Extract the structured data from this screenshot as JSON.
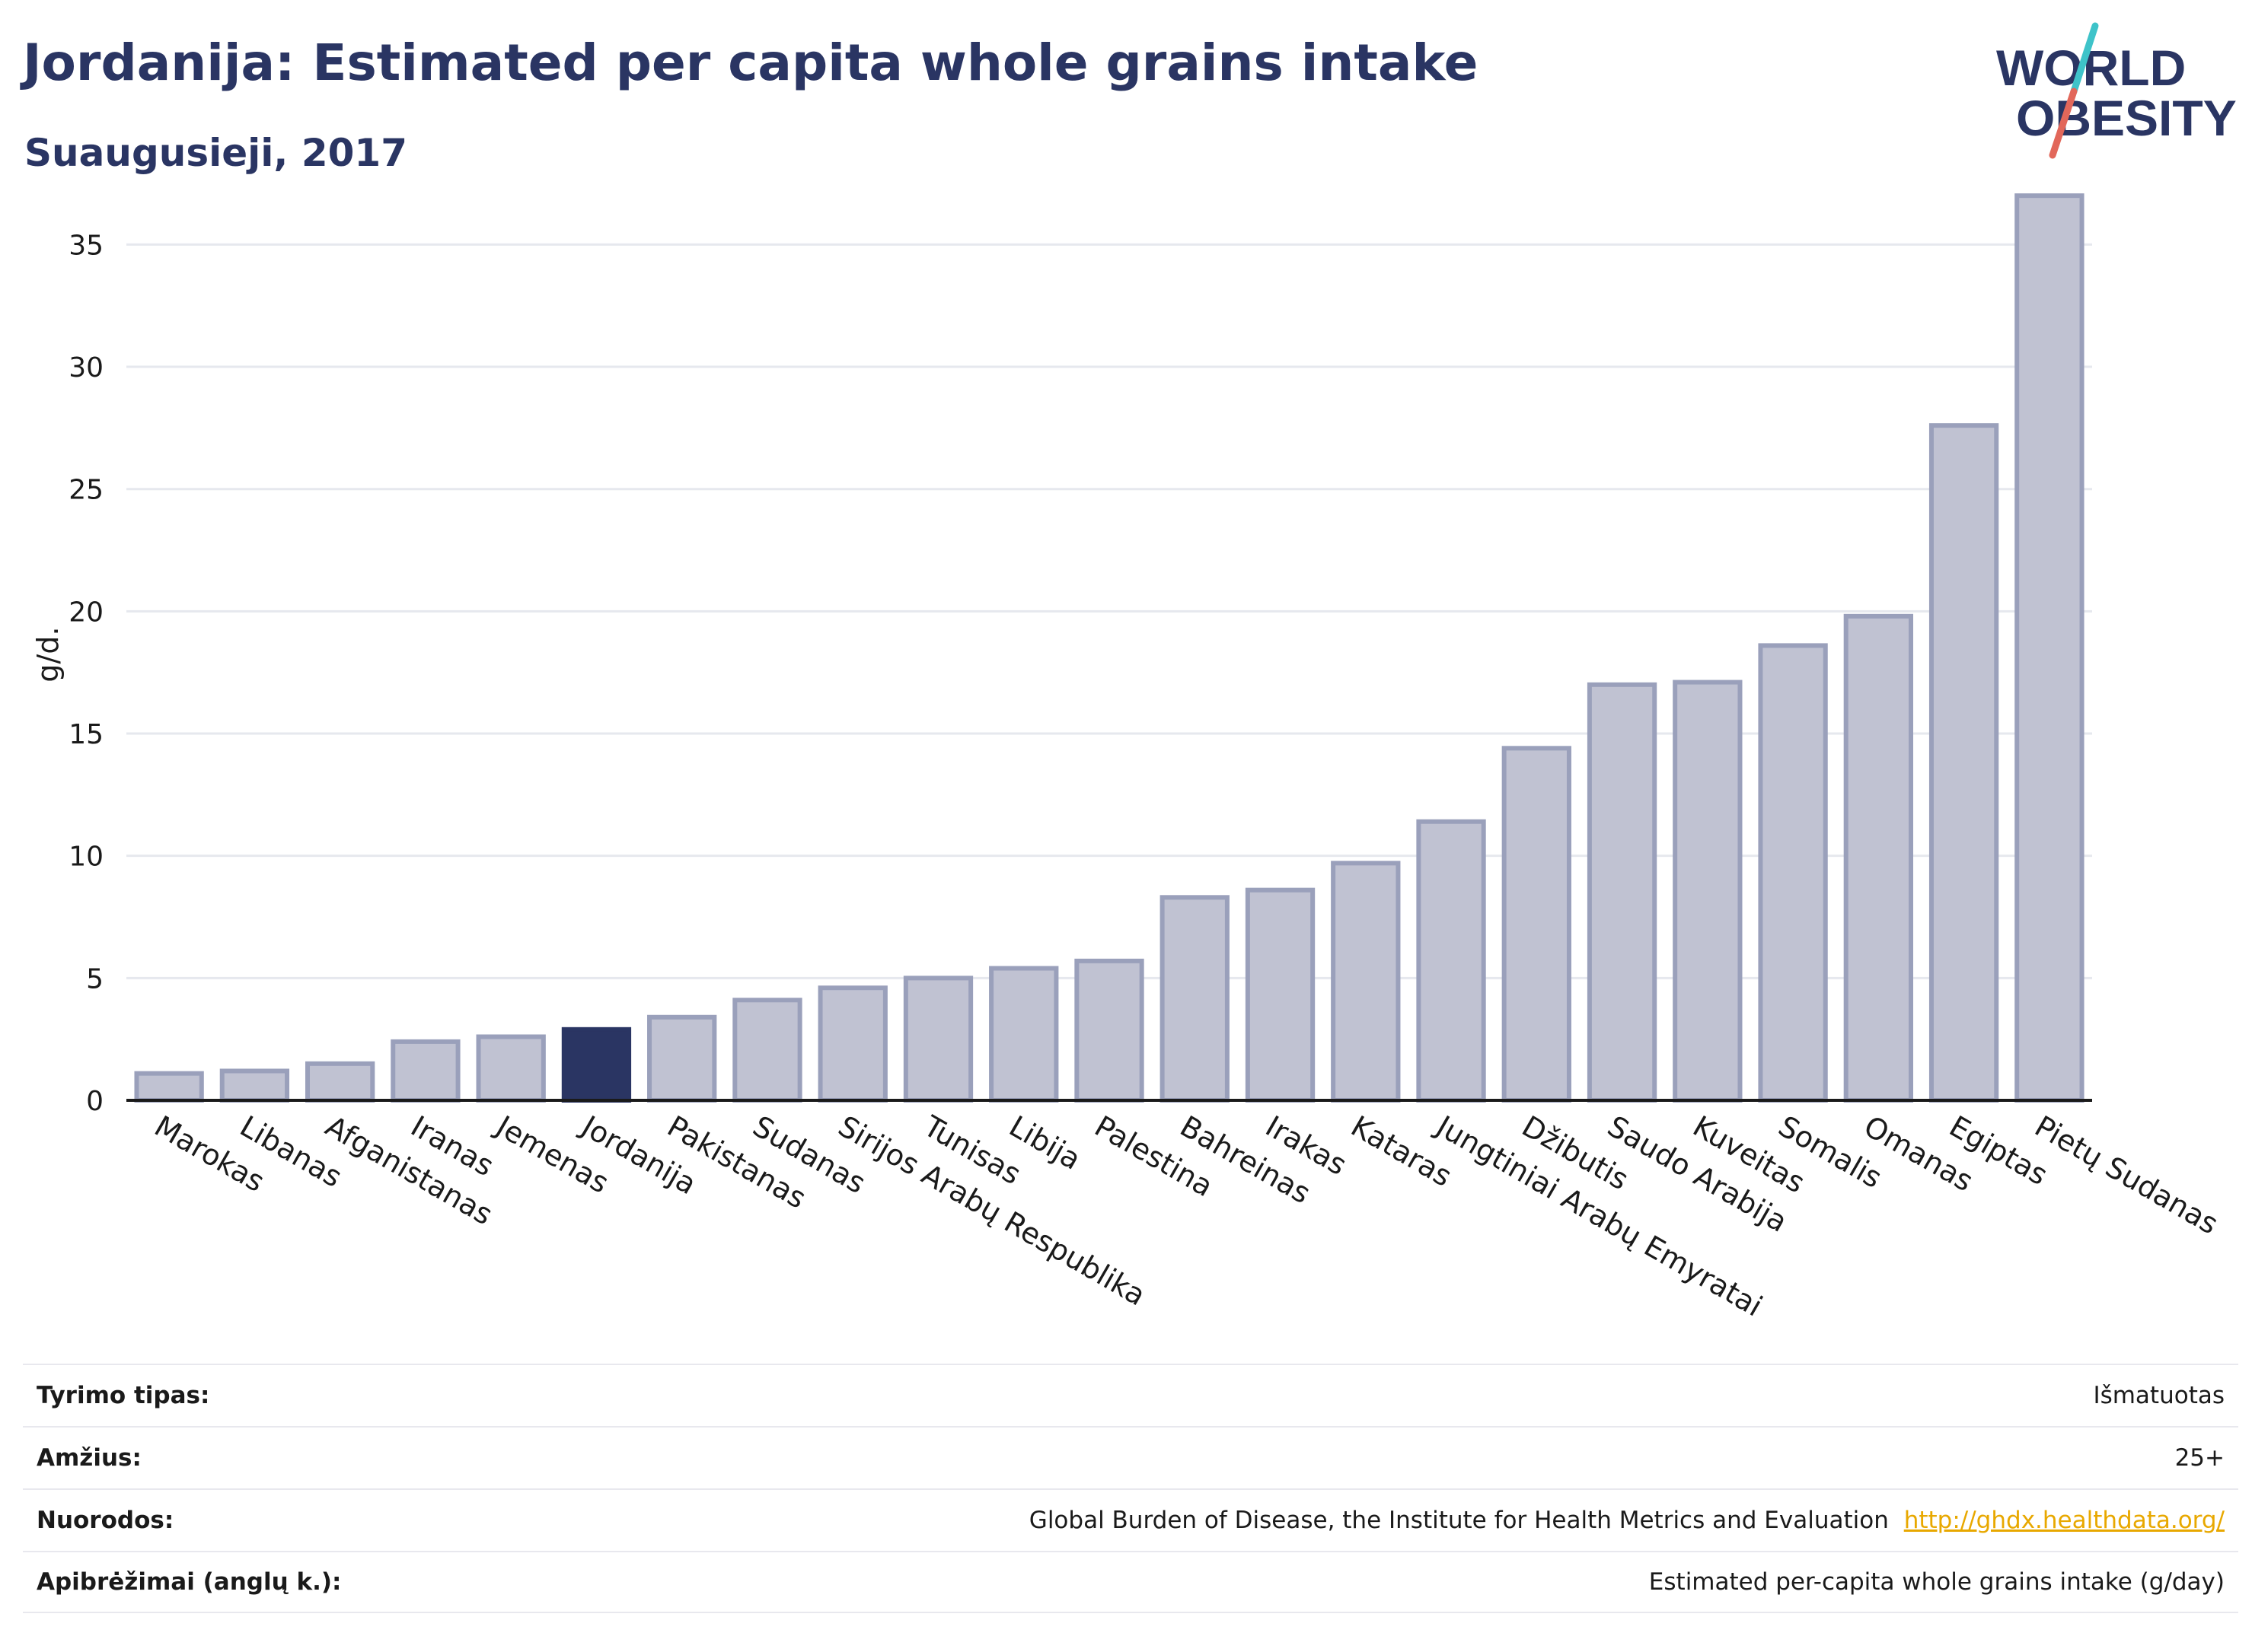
{
  "header": {
    "title": "Jordanija: Estimated per capita whole grains intake",
    "subtitle": "Suaugusieji, 2017"
  },
  "logo": {
    "line1": "WORLD",
    "line2": "OBESITY"
  },
  "colors": {
    "bar": "#c0c2d2",
    "bar_stroke": "#9aa0bb",
    "highlight": "#2a3563",
    "grid": "#e6e8ee",
    "text": "#1a1a1a",
    "title": "#2a3563",
    "link": "#e8a800",
    "logo_teal": "#3ec3c9",
    "logo_red": "#e2675a"
  },
  "chart_data": {
    "type": "bar",
    "ylabel": "g/d.",
    "ylim": [
      0,
      38
    ],
    "yticks": [
      0,
      5,
      10,
      15,
      20,
      25,
      30,
      35
    ],
    "grid": true,
    "highlight": "Jordanija",
    "categories": [
      "Marokas",
      "Libanas",
      "Afganistanas",
      "Iranas",
      "Jemenas",
      "Jordanija",
      "Pakistanas",
      "Sudanas",
      "Sirijos Arabų Respublika",
      "Tunisas",
      "Libija",
      "Palestina",
      "Bahreinas",
      "Irakas",
      "Kataras",
      "Jungtiniai Arabų Emyratai",
      "Džibutis",
      "Saudo Arabija",
      "Kuveitas",
      "Somalis",
      "Omanas",
      "Egiptas",
      "Pietų Sudanas"
    ],
    "values": [
      1.1,
      1.2,
      1.5,
      2.4,
      2.6,
      2.9,
      3.4,
      4.1,
      4.6,
      5.0,
      5.4,
      5.7,
      8.3,
      8.6,
      9.7,
      11.4,
      14.4,
      17.0,
      17.1,
      18.6,
      19.8,
      27.6,
      37.0
    ]
  },
  "info": [
    {
      "label": "Tyrimo tipas:",
      "value": "Išmatuotas"
    },
    {
      "label": "Amžius:",
      "value": "25+"
    },
    {
      "label": "Nuorodos:",
      "value": "Global Burden of Disease, the Institute for Health Metrics and Evaluation",
      "link": "http://ghdx.healthdata.org/"
    },
    {
      "label": "Apibrėžimai (anglų k.):",
      "value": "Estimated per-capita whole grains intake (g/day)"
    }
  ]
}
